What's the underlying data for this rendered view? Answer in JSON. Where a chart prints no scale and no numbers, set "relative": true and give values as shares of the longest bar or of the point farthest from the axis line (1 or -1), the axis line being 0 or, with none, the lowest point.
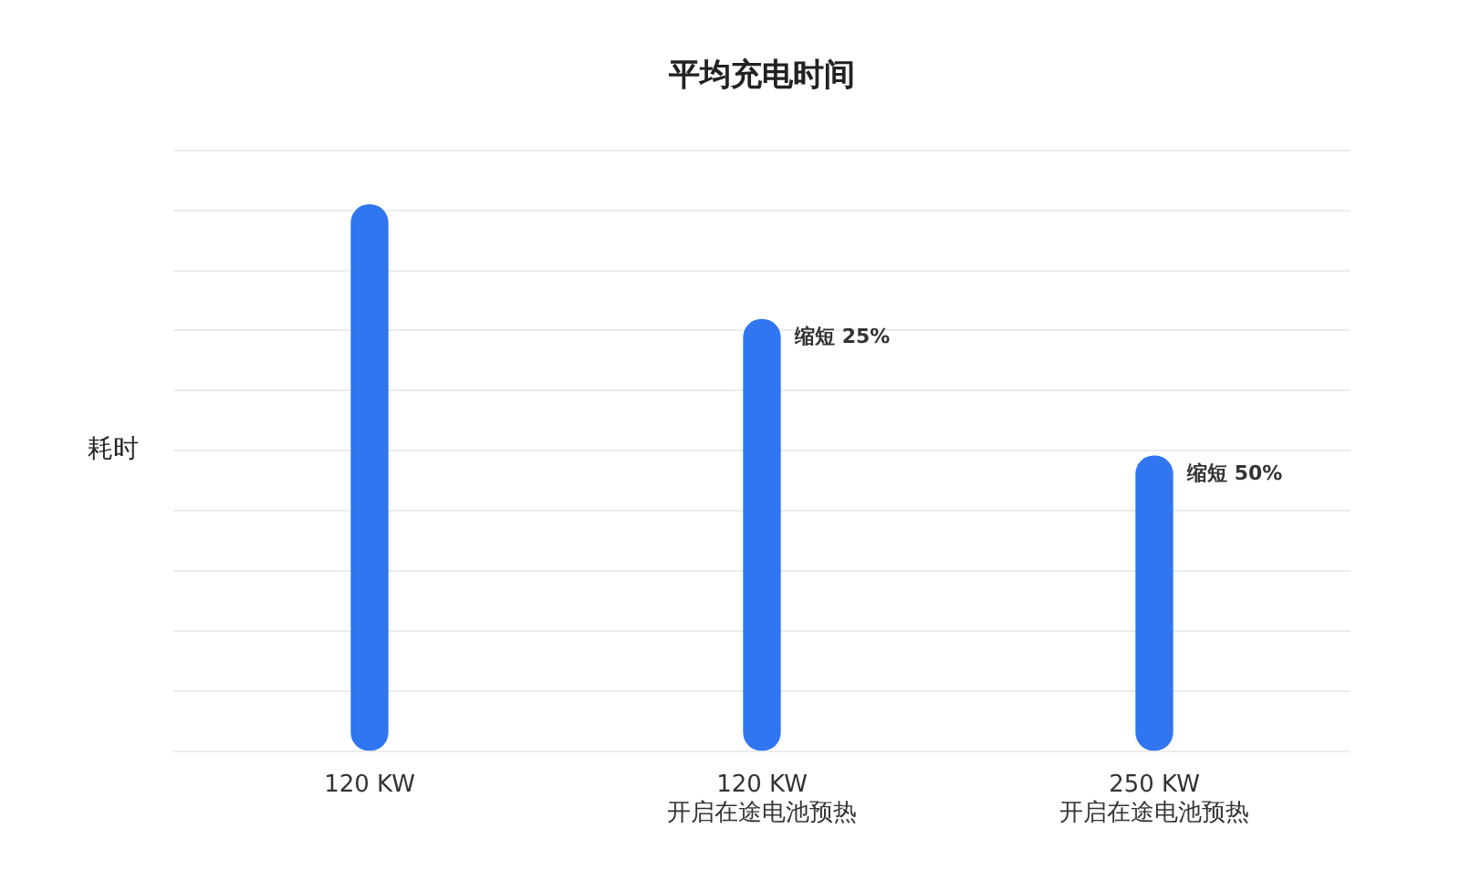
{
  "chart_data": {
    "type": "bar",
    "title": "平均充电时间",
    "ylabel": "耗时",
    "relative": true,
    "grid": "y",
    "categories": [
      "120 KW",
      "120 KW\n开启在途电池预热",
      "250 KW\n开启在途电池预热"
    ],
    "values": [
      1,
      0.79,
      0.54
    ],
    "color": "#2f76f0",
    "annotations": [
      {
        "text": "缩短 25%",
        "x": "120 KW\n开启在途电池预热",
        "y": 0.79
      },
      {
        "text": "缩短 50%",
        "x": "250 KW\n开启在途电池预热",
        "y": 0.54
      }
    ]
  }
}
